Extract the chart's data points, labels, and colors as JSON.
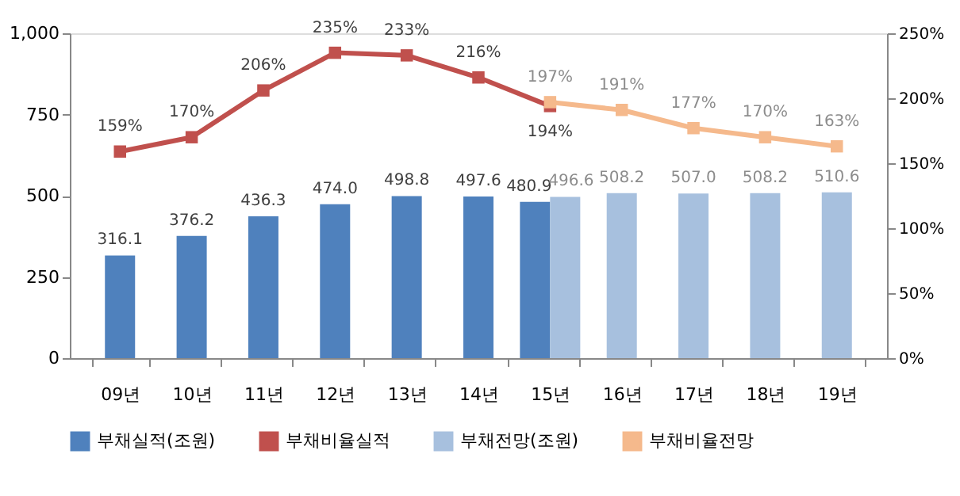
{
  "chart_data": {
    "type": "bar",
    "categories": [
      "09년",
      "10년",
      "11년",
      "12년",
      "13년",
      "14년",
      "15년",
      "16년",
      "17년",
      "18년",
      "19년"
    ],
    "series": [
      {
        "name": "부채실적(조원)",
        "color": "#4f81bd",
        "values": [
          316.1,
          376.2,
          436.3,
          474.0,
          498.8,
          497.6,
          480.9,
          null,
          null,
          null,
          null
        ],
        "value_labels": [
          "316.1",
          "376.2",
          "436.3",
          "474.0",
          "498.8",
          "497.6",
          "480.9",
          null,
          null,
          null,
          null
        ]
      },
      {
        "name": "부채비율실적",
        "type": "line",
        "axis": "y2",
        "color": "#c0504d",
        "values": [
          159,
          170,
          206,
          235,
          233,
          216,
          194,
          null,
          null,
          null,
          null
        ],
        "value_labels": [
          "159%",
          "170%",
          "206%",
          "235%",
          "233%",
          "216%",
          "194%",
          null,
          null,
          null,
          null
        ]
      },
      {
        "name": "부채전망(조원)",
        "color": "#a7c0de",
        "values": [
          null,
          null,
          null,
          null,
          null,
          null,
          496.6,
          508.2,
          507.0,
          508.2,
          510.6
        ],
        "value_labels": [
          null,
          null,
          null,
          null,
          null,
          null,
          "496.6",
          "508.2",
          "507.0",
          "508.2",
          "510.6"
        ]
      },
      {
        "name": "부채비율전망",
        "type": "line",
        "axis": "y2",
        "color": "#f5b98c",
        "values": [
          null,
          null,
          null,
          null,
          null,
          null,
          197,
          191,
          177,
          170,
          163
        ],
        "value_labels": [
          null,
          null,
          null,
          null,
          null,
          null,
          "197%",
          "191%",
          "177%",
          "170%",
          "163%"
        ]
      }
    ],
    "ylim": [
      0,
      1000
    ],
    "yticks": [
      0,
      250,
      500,
      750,
      {
        "value": 1000,
        "label": "1,000"
      }
    ],
    "y2lim": [
      0,
      250
    ],
    "y2ticks": [
      {
        "value": 0,
        "label": "0%"
      },
      {
        "value": 50,
        "label": "50%"
      },
      {
        "value": 100,
        "label": "100%"
      },
      {
        "value": 150,
        "label": "150%"
      },
      {
        "value": 200,
        "label": "200%"
      },
      {
        "value": 250,
        "label": "250%"
      }
    ],
    "grid": false,
    "legend": "bottom",
    "marker": "square"
  }
}
